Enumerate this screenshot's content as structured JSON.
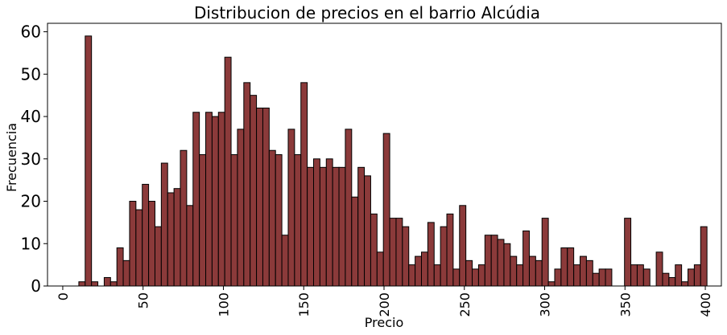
{
  "chart_data": {
    "type": "bar",
    "title": "Distribucion de precios en el barrio Alcúdia",
    "xlabel": "Precio",
    "ylabel": "Frecuencia",
    "xlim": [
      -9.5,
      410
    ],
    "ylim": [
      0,
      62
    ],
    "xticks": [
      0,
      50,
      100,
      150,
      200,
      250,
      300,
      350,
      400
    ],
    "yticks": [
      0,
      10,
      20,
      30,
      40,
      50,
      60
    ],
    "bar_color": "#8b3a3a",
    "grid": false,
    "bins": {
      "start": 10,
      "width": 3.95,
      "values": [
        1,
        59,
        1,
        0,
        2,
        1,
        9,
        6,
        20,
        18,
        24,
        20,
        14,
        29,
        22,
        23,
        32,
        19,
        41,
        31,
        41,
        40,
        41,
        54,
        31,
        37,
        48,
        45,
        42,
        42,
        32,
        31,
        12,
        37,
        31,
        48,
        28,
        30,
        28,
        30,
        28,
        28,
        37,
        21,
        28,
        26,
        17,
        8,
        36,
        16,
        16,
        14,
        5,
        7,
        8,
        15,
        5,
        14,
        17,
        4,
        19,
        6,
        4,
        5,
        12,
        12,
        11,
        10,
        7,
        5,
        13,
        7,
        6,
        16,
        1,
        4,
        9,
        9,
        5,
        7,
        6,
        3,
        4,
        4,
        0,
        0,
        16,
        5,
        5,
        4,
        0,
        8,
        3,
        2,
        5,
        1,
        4,
        5,
        14
      ]
    }
  }
}
